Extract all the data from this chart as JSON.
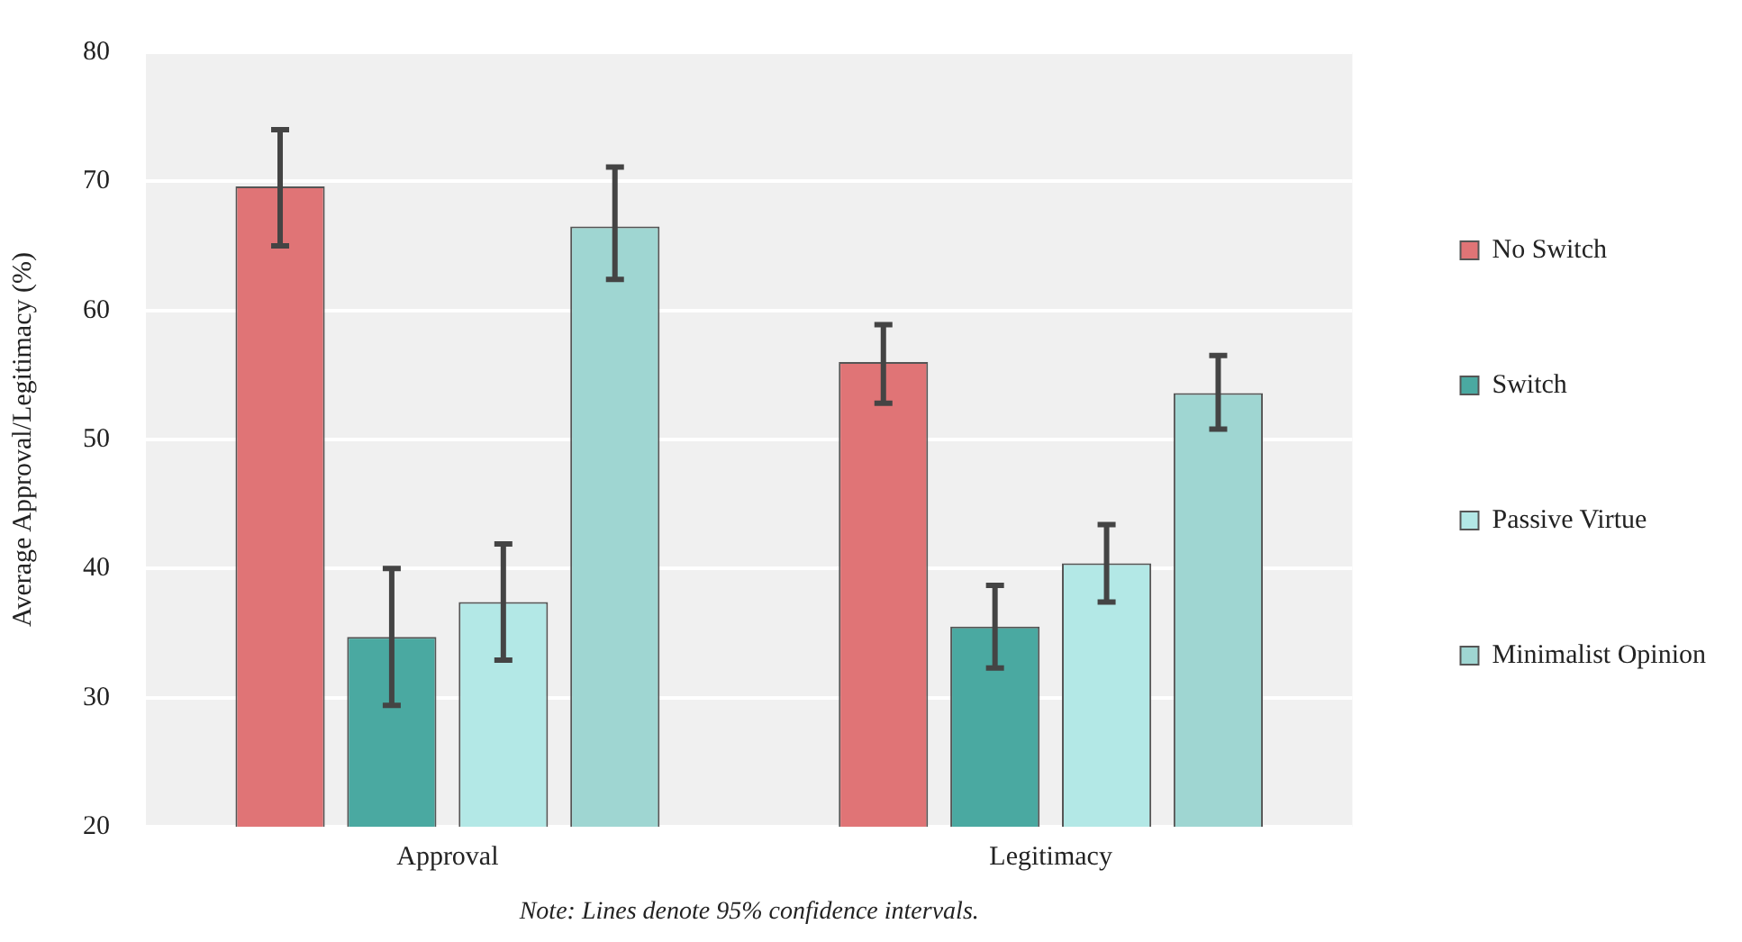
{
  "chart_data": {
    "type": "bar",
    "ylabel": "Average Approval/Legitimacy (%)",
    "categories": [
      "Approval",
      "Legitimacy"
    ],
    "series": [
      {
        "name": "No Switch",
        "color": "#e07476",
        "values": [
          69.6,
          56.0
        ],
        "errors": [
          [
            65.0,
            74.0
          ],
          [
            52.8,
            58.9
          ]
        ]
      },
      {
        "name": "Switch",
        "color": "#4aa9a1",
        "values": [
          34.7,
          35.5
        ],
        "errors": [
          [
            29.4,
            40.0
          ],
          [
            32.3,
            38.7
          ]
        ]
      },
      {
        "name": "Passive Virtue",
        "color": "#b3e8e6",
        "values": [
          37.4,
          40.4
        ],
        "errors": [
          [
            32.9,
            41.9
          ],
          [
            37.4,
            43.4
          ]
        ]
      },
      {
        "name": "Minimalist Opinion",
        "color": "#9fd6d2",
        "values": [
          66.5,
          53.6
        ],
        "errors": [
          [
            62.4,
            71.1
          ],
          [
            50.8,
            56.5
          ]
        ]
      }
    ],
    "ylim": [
      20,
      80
    ],
    "yticks": [
      20,
      30,
      40,
      50,
      60,
      70,
      80
    ],
    "grid": "y",
    "legend": "right",
    "annotations": [
      "Note: Lines denote 95% confidence intervals."
    ]
  }
}
